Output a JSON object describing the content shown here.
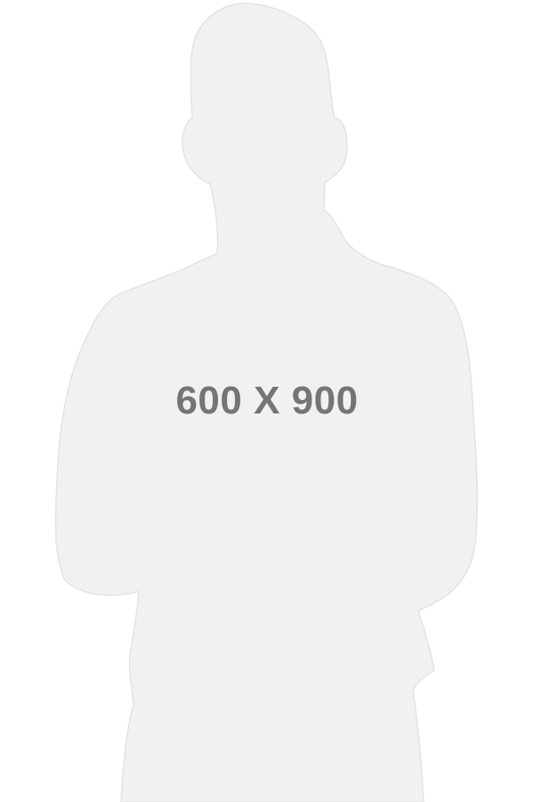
{
  "placeholder": {
    "dimensions_text": "600 X 900",
    "silhouette_icon": "person-silhouette-icon",
    "colors": {
      "background": "#ffffff",
      "silhouette_fill": "#f1f1f1",
      "silhouette_edge": "#e3e3e3",
      "text": "#757575"
    }
  }
}
